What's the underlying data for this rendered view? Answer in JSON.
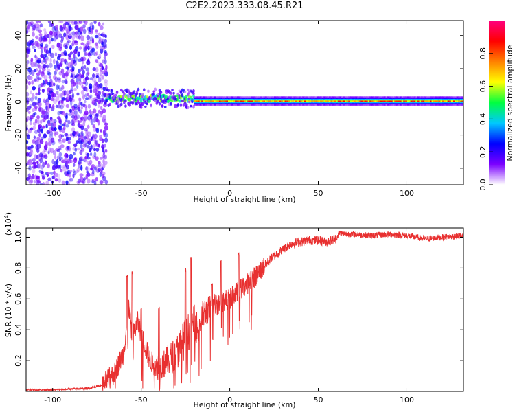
{
  "figure_title": "C2E2.2023.333.08.45.R21",
  "chart_data": [
    {
      "type": "heatmap",
      "xlabel": "Height of straight line (km)",
      "ylabel": "Frequency (Hz)",
      "xlim": [
        -115,
        132
      ],
      "ylim": [
        -50,
        49
      ],
      "x_ticks": [
        -100,
        -50,
        0,
        50,
        100
      ],
      "y_ticks": [
        -40,
        -20,
        0,
        20,
        40
      ],
      "colorbar": {
        "label": "Normalized spectral amplitude",
        "range": [
          0,
          1
        ],
        "ticks": [
          "0.0",
          "0.2",
          "0.4",
          "0.6",
          "0.8"
        ],
        "colormap": [
          "#ffffff",
          "#7a00ff",
          "#0000ff",
          "#00c8ff",
          "#00ff40",
          "#ffff00",
          "#ff8000",
          "#ff0000",
          "#ff0080"
        ]
      },
      "regions": [
        {
          "x_range": [
            -115,
            -70
          ],
          "description_value": "broadband noise, amplitude ~0.1-0.3 across all frequencies"
        },
        {
          "x_range": [
            -70,
            -20
          ],
          "center_hz": 2,
          "spread_hz": 6,
          "peak_amplitude": 0.6
        },
        {
          "x_range": [
            -20,
            132
          ],
          "center_hz": 0.5,
          "spread_hz": 3,
          "peak_amplitude": 0.9
        }
      ]
    },
    {
      "type": "line",
      "xlabel": "Height of straight line (km)",
      "ylabel": "SNR (10 * v/v)",
      "y_multiplier": "(x10",
      "y_multiplier_exp": "4",
      "y_multiplier_close": ")",
      "xlim": [
        -115,
        132
      ],
      "ylim": [
        0,
        1.06
      ],
      "x_ticks": [
        -100,
        -50,
        0,
        50,
        100
      ],
      "y_ticks": [
        0.2,
        0.4,
        0.6,
        0.8,
        1.0
      ],
      "y_tick_labels": [
        "0.2",
        "0.4",
        "0.6",
        "0.8",
        "1.0"
      ],
      "color": "#e83030",
      "x": [
        -115,
        -100,
        -80,
        -72,
        -65,
        -60,
        -57,
        -55,
        -52,
        -48,
        -45,
        -40,
        -35,
        -30,
        -25,
        -20,
        -18,
        -15,
        -10,
        -5,
        0,
        5,
        10,
        15,
        20,
        25,
        30,
        35,
        40,
        45,
        50,
        55,
        60,
        62,
        65,
        70,
        80,
        90,
        100,
        110,
        120,
        132
      ],
      "y": [
        0.01,
        0.01,
        0.02,
        0.04,
        0.12,
        0.25,
        0.55,
        0.35,
        0.45,
        0.3,
        0.2,
        0.15,
        0.2,
        0.25,
        0.35,
        0.45,
        0.4,
        0.5,
        0.55,
        0.58,
        0.6,
        0.65,
        0.7,
        0.75,
        0.82,
        0.88,
        0.92,
        0.96,
        0.97,
        0.98,
        0.98,
        0.97,
        0.99,
        1.03,
        1.02,
        1.02,
        1.01,
        1.02,
        1.01,
        0.99,
        1.0,
        1.01
      ],
      "spikes": [
        {
          "x": -58,
          "y": 0.76
        },
        {
          "x": -55,
          "y": 0.78
        },
        {
          "x": -50,
          "y": 0.55
        },
        {
          "x": -40,
          "y": 0.55
        },
        {
          "x": -25,
          "y": 0.8
        },
        {
          "x": -22,
          "y": 0.88
        },
        {
          "x": -10,
          "y": 0.7
        },
        {
          "x": -5,
          "y": 0.85
        },
        {
          "x": 5,
          "y": 0.9
        },
        {
          "x": 12,
          "y": 0.78
        }
      ]
    }
  ]
}
